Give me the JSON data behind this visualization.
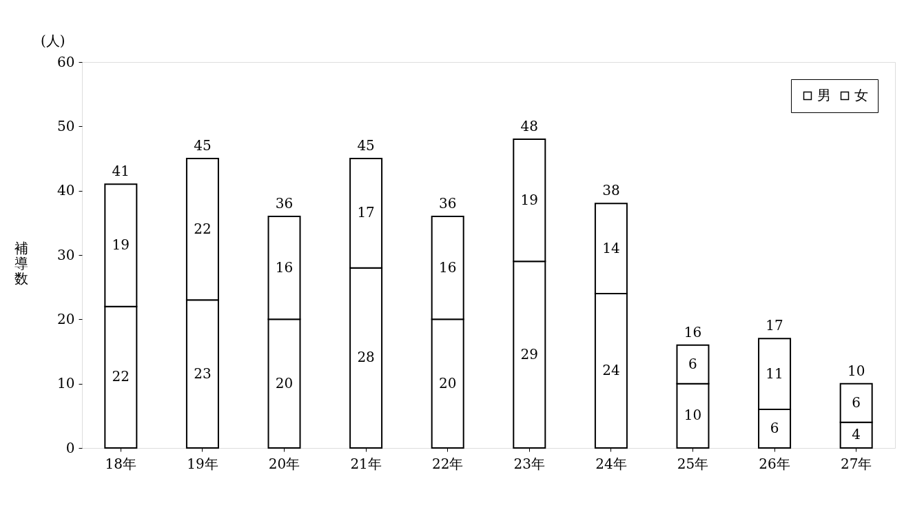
{
  "chart_data": {
    "type": "bar",
    "stacked": true,
    "ylabel": "補導数",
    "annotations": [
      "(人)"
    ],
    "categories": [
      "18年",
      "19年",
      "20年",
      "21年",
      "22年",
      "23年",
      "24年",
      "25年",
      "26年",
      "27年"
    ],
    "series": [
      {
        "name": "男",
        "color": "#ffffff",
        "values": [
          22,
          23,
          20,
          28,
          20,
          29,
          24,
          10,
          6,
          4
        ]
      },
      {
        "name": "女",
        "color": "#ffffff",
        "values": [
          19,
          22,
          16,
          17,
          16,
          19,
          14,
          6,
          11,
          6
        ]
      }
    ],
    "totals": [
      "41",
      "45",
      "36",
      "45",
      "36",
      "48",
      "38",
      "16",
      "17",
      "10"
    ],
    "data_labels": true,
    "ylim": [
      0,
      60
    ],
    "yticks": [
      0,
      10,
      20,
      30,
      40,
      50,
      60
    ],
    "grid": false,
    "legend": "top right"
  }
}
